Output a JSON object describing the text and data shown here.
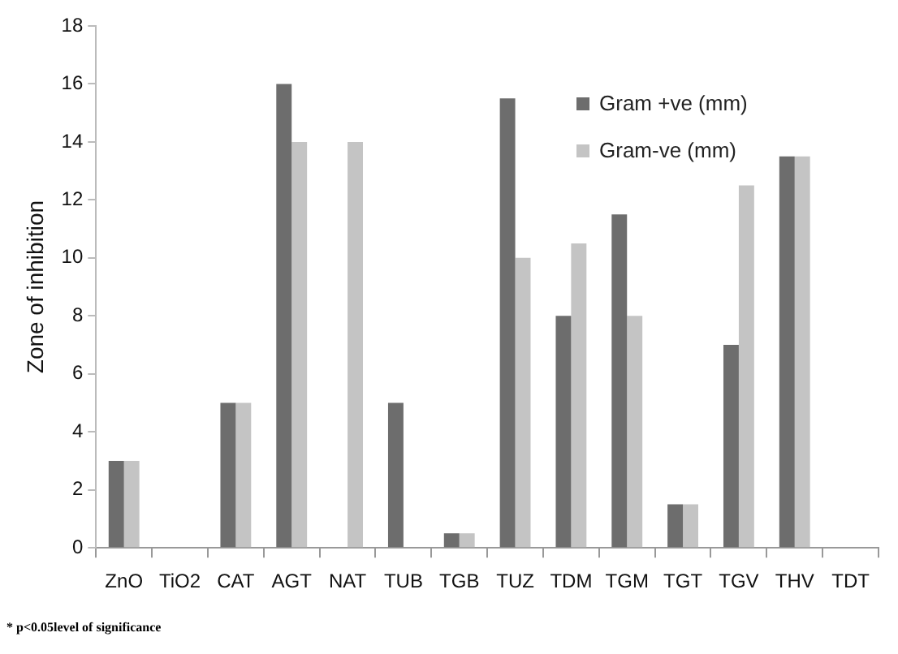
{
  "chart_data": {
    "type": "bar",
    "ylabel": "Zone of inhibition",
    "categories": [
      "ZnO",
      "TiO2",
      "CAT",
      "AGT",
      "NAT",
      "TUB",
      "TGB",
      "TUZ",
      "TDM",
      "TGM",
      "TGT",
      "TGV",
      "THV",
      "TDT"
    ],
    "series": [
      {
        "name": "Gram +ve (mm)",
        "color": "#6d6d6d",
        "values": [
          3,
          0,
          5,
          16,
          0,
          5,
          0.5,
          15.5,
          8,
          11.5,
          1.5,
          7,
          13.5,
          0
        ]
      },
      {
        "name": "Gram-ve (mm)",
        "color": "#c4c4c4",
        "values": [
          3,
          0,
          5,
          14,
          14,
          0,
          0.5,
          10,
          10.5,
          8,
          1.5,
          12.5,
          13.5,
          0
        ]
      }
    ],
    "ylim": [
      0,
      18
    ],
    "yticks": [
      0,
      2,
      4,
      6,
      8,
      10,
      12,
      14,
      16,
      18
    ],
    "grid": false,
    "legend": "top right",
    "annotations": [
      "* p<0.05level of significance"
    ]
  }
}
